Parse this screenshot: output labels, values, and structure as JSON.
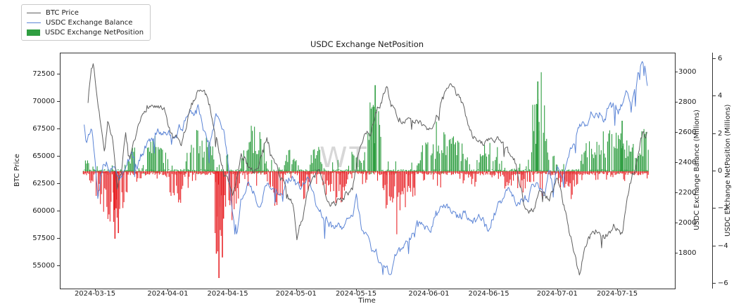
{
  "title": "USDC Exchange NetPosition",
  "watermark": {
    "text": "WT"
  },
  "chart_data": {
    "type": "mixed",
    "title": "USDC Exchange NetPosition",
    "xlabel": "Time",
    "legend": {
      "entries": [
        {
          "label": "BTC Price",
          "kind": "line",
          "color": "#5f5f5f"
        },
        {
          "label": "USDC Exchange Balance",
          "kind": "line",
          "color": "#5c85d6"
        },
        {
          "label": "USDC Exchange NetPosition",
          "kind": "patch",
          "color": "#2f9e41"
        }
      ]
    },
    "axes": {
      "btc": {
        "label": "BTC Price",
        "side": "left",
        "ticks": [
          72500,
          70000,
          67500,
          65000,
          62500,
          60000,
          57500,
          55000
        ]
      },
      "balance": {
        "label": "USDC Exchange Balance (Millions)",
        "side": "right",
        "ticks": [
          3000,
          2800,
          2600,
          2400,
          2200,
          2000,
          1800
        ]
      },
      "netpos": {
        "label": "USDC Exchange NetPosition (Millions)",
        "side": "right-offset",
        "ticks": [
          6,
          4,
          2,
          0,
          -2,
          -4,
          -6
        ]
      },
      "x": {
        "label": "Time",
        "ticks": [
          {
            "label": "2024-03-15",
            "day": 3
          },
          {
            "label": "2024-04-01",
            "day": 20
          },
          {
            "label": "2024-04-15",
            "day": 34
          },
          {
            "label": "2024-05-01",
            "day": 50
          },
          {
            "label": "2024-05-15",
            "day": 64
          },
          {
            "label": "2024-06-01",
            "day": 81
          },
          {
            "label": "2024-06-15",
            "day": 95
          },
          {
            "label": "2024-07-01",
            "day": 111
          },
          {
            "label": "2024-07-15",
            "day": 125
          }
        ],
        "day_zero_date": "2024-03-12",
        "day_span": 132
      }
    },
    "series": [
      {
        "name": "BTC Price",
        "type": "line",
        "axis": "btc",
        "color": "#5f5f5f",
        "keypoints": [
          [
            1.2,
            70200
          ],
          [
            2,
            73000
          ],
          [
            2.5,
            73500
          ],
          [
            3,
            71800
          ],
          [
            4,
            69000
          ],
          [
            5,
            65500
          ],
          [
            5.8,
            68000
          ],
          [
            7,
            66800
          ],
          [
            8,
            61500
          ],
          [
            9,
            63500
          ],
          [
            10,
            66800
          ],
          [
            11,
            64200
          ],
          [
            13,
            67200
          ],
          [
            15,
            69800
          ],
          [
            17,
            69600
          ],
          [
            19,
            68800
          ],
          [
            21,
            66500
          ],
          [
            23,
            65800
          ],
          [
            25,
            69000
          ],
          [
            27,
            71400
          ],
          [
            29,
            70600
          ],
          [
            31,
            67500
          ],
          [
            33,
            63500
          ],
          [
            35,
            61600
          ],
          [
            37,
            64800
          ],
          [
            39,
            64000
          ],
          [
            41,
            63800
          ],
          [
            43,
            66600
          ],
          [
            45,
            64200
          ],
          [
            47,
            62800
          ],
          [
            49,
            60500
          ],
          [
            50,
            57600
          ],
          [
            51,
            59200
          ],
          [
            53,
            62200
          ],
          [
            55,
            63600
          ],
          [
            57,
            61300
          ],
          [
            59,
            60800
          ],
          [
            61,
            61500
          ],
          [
            63,
            62000
          ],
          [
            65,
            66200
          ],
          [
            67,
            67000
          ],
          [
            69,
            69600
          ],
          [
            71,
            71200
          ],
          [
            73,
            68800
          ],
          [
            75,
            68500
          ],
          [
            77,
            67800
          ],
          [
            79,
            68300
          ],
          [
            81,
            67700
          ],
          [
            83,
            69000
          ],
          [
            85,
            70900
          ],
          [
            87,
            71100
          ],
          [
            89,
            69300
          ],
          [
            91,
            67200
          ],
          [
            93,
            66000
          ],
          [
            95,
            66500
          ],
          [
            97,
            66800
          ],
          [
            99,
            65200
          ],
          [
            101,
            64200
          ],
          [
            103,
            61000
          ],
          [
            105,
            60300
          ],
          [
            107,
            61800
          ],
          [
            109,
            61000
          ],
          [
            111,
            62800
          ],
          [
            113,
            60000
          ],
          [
            114.5,
            56900
          ],
          [
            116,
            54300
          ],
          [
            117,
            56500
          ],
          [
            118,
            57500
          ],
          [
            120,
            58300
          ],
          [
            122,
            57600
          ],
          [
            124,
            58800
          ],
          [
            126,
            57900
          ],
          [
            127,
            60500
          ],
          [
            128,
            62500
          ],
          [
            129,
            63800
          ],
          [
            130,
            66000
          ],
          [
            131,
            67600
          ],
          [
            131.5,
            66800
          ],
          [
            132,
            68000
          ]
        ]
      },
      {
        "name": "USDC Exchange Balance",
        "type": "line",
        "axis": "balance",
        "color": "#5c85d6",
        "keypoints": [
          [
            0.3,
            2650
          ],
          [
            1,
            2560
          ],
          [
            2,
            2640
          ],
          [
            3,
            2400
          ],
          [
            3.5,
            2160
          ],
          [
            4,
            2310
          ],
          [
            5,
            2420
          ],
          [
            7,
            2380
          ],
          [
            9,
            2290
          ],
          [
            11,
            2440
          ],
          [
            13,
            2400
          ],
          [
            15,
            2510
          ],
          [
            17,
            2570
          ],
          [
            19,
            2620
          ],
          [
            21,
            2580
          ],
          [
            23,
            2640
          ],
          [
            25,
            2700
          ],
          [
            27,
            2740
          ],
          [
            28.5,
            2600
          ],
          [
            29.5,
            2550
          ],
          [
            31,
            2690
          ],
          [
            33,
            2620
          ],
          [
            34,
            2350
          ],
          [
            35,
            2060
          ],
          [
            36,
            1910
          ],
          [
            37,
            2150
          ],
          [
            39,
            2250
          ],
          [
            41,
            2140
          ],
          [
            43,
            2280
          ],
          [
            45,
            2190
          ],
          [
            47,
            2260
          ],
          [
            49,
            2320
          ],
          [
            51,
            2200
          ],
          [
            53,
            2280
          ],
          [
            55,
            2090
          ],
          [
            57,
            2040
          ],
          [
            59,
            1950
          ],
          [
            61,
            1990
          ],
          [
            63,
            2060
          ],
          [
            64,
            2160
          ],
          [
            65,
            1990
          ],
          [
            67,
            1850
          ],
          [
            69,
            1770
          ],
          [
            71,
            1700
          ],
          [
            72,
            1680
          ],
          [
            73,
            1800
          ],
          [
            75,
            1830
          ],
          [
            77,
            1950
          ],
          [
            79,
            2020
          ],
          [
            81,
            1980
          ],
          [
            83,
            2090
          ],
          [
            85,
            2130
          ],
          [
            87,
            2060
          ],
          [
            89,
            2060
          ],
          [
            91,
            2000
          ],
          [
            93,
            2030
          ],
          [
            94.5,
            1960
          ],
          [
            96,
            2080
          ],
          [
            98,
            2160
          ],
          [
            100,
            2190
          ],
          [
            102,
            2140
          ],
          [
            104,
            2190
          ],
          [
            106,
            2240
          ],
          [
            108,
            2200
          ],
          [
            109,
            2340
          ],
          [
            110,
            2250
          ],
          [
            111,
            2400
          ],
          [
            112,
            2310
          ],
          [
            113,
            2450
          ],
          [
            115,
            2560
          ],
          [
            117,
            2700
          ],
          [
            118,
            2630
          ],
          [
            119,
            2710
          ],
          [
            121,
            2760
          ],
          [
            122,
            2690
          ],
          [
            123,
            2790
          ],
          [
            125,
            2730
          ],
          [
            127,
            2860
          ],
          [
            128,
            2790
          ],
          [
            129,
            2910
          ],
          [
            130.5,
            3060
          ],
          [
            131,
            3030
          ],
          [
            131.5,
            2960
          ],
          [
            132,
            2880
          ]
        ]
      },
      {
        "name": "USDC Exchange NetPosition",
        "type": "bar",
        "axis": "netpos",
        "pos_color": "#2f9e41",
        "neg_color": "#e8262a",
        "clusters": [
          [
            -0.3,
            1.5,
            0.9
          ],
          [
            1.5,
            3,
            -0.9
          ],
          [
            3,
            10.5,
            -2.9
          ],
          [
            10.5,
            12.5,
            1.2
          ],
          [
            12.5,
            14,
            -1.2
          ],
          [
            14,
            20,
            1.8
          ],
          [
            20,
            24,
            -1.9
          ],
          [
            24,
            31,
            2.3
          ],
          [
            31,
            37,
            -3.0
          ],
          [
            37,
            43,
            2.4
          ],
          [
            43,
            47,
            -2.2
          ],
          [
            47,
            50,
            1.3
          ],
          [
            50,
            53,
            -1.6
          ],
          [
            53,
            56,
            1.6
          ],
          [
            56,
            62,
            -2.0
          ],
          [
            62,
            65.5,
            1.0
          ],
          [
            65.5,
            70,
            4.2
          ],
          [
            70,
            78,
            -2.6
          ],
          [
            78,
            90.5,
            2.2
          ],
          [
            90.5,
            92,
            -1.0
          ],
          [
            92,
            98,
            1.8
          ],
          [
            98,
            101,
            -0.9
          ],
          [
            101,
            104,
            -1.2
          ],
          [
            104,
            109,
            4.5
          ],
          [
            109,
            111,
            1.0
          ],
          [
            111,
            116,
            -1.7
          ],
          [
            116,
            130,
            2.4
          ],
          [
            130,
            132.3,
            2.6
          ]
        ],
        "spikes": [
          [
            7.5,
            -3.6
          ],
          [
            8.3,
            -3.3
          ],
          [
            31.2,
            -4.4
          ],
          [
            31.8,
            -5.7
          ],
          [
            32.6,
            -4.6
          ],
          [
            68.3,
            4.6
          ],
          [
            106.3,
            4.8
          ],
          [
            126,
            2.7
          ]
        ]
      }
    ]
  }
}
